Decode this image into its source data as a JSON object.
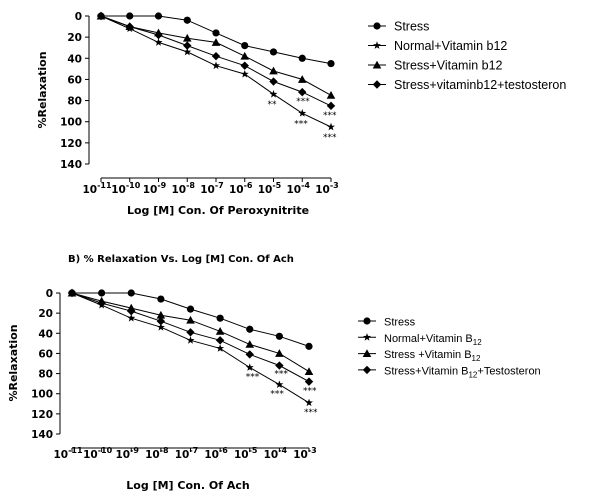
{
  "chart_data": [
    {
      "type": "line",
      "title": "",
      "xlabel": "Log [M] Con. Of Peroxynitrite",
      "ylabel": "%Relaxation",
      "x_ticks": [
        {
          "base": "10",
          "exp": "-11"
        },
        {
          "base": "10",
          "exp": "-10"
        },
        {
          "base": "10",
          "exp": "-9"
        },
        {
          "base": "10",
          "exp": "-8"
        },
        {
          "base": "10",
          "exp": "-7"
        },
        {
          "base": "10",
          "exp": "-6"
        },
        {
          "base": "10",
          "exp": "-5"
        },
        {
          "base": "10",
          "exp": "-4"
        },
        {
          "base": "10",
          "exp": "-3"
        }
      ],
      "y_ticks": [
        "0",
        "20",
        "40",
        "60",
        "80",
        "100",
        "120",
        "140"
      ],
      "ylim": [
        0,
        140
      ],
      "y_inverted": true,
      "x": [
        -11,
        -10,
        -9,
        -8,
        -7,
        -6,
        -5,
        -4,
        -3
      ],
      "series": [
        {
          "name": "Stress",
          "marker": "circle",
          "values": [
            0,
            0,
            0,
            4,
            16,
            28,
            34,
            40,
            45
          ]
        },
        {
          "name": "Normal+Vitamin b12",
          "marker": "star",
          "values": [
            0,
            12,
            25,
            34,
            47,
            55,
            74,
            92,
            105
          ]
        },
        {
          "name": "Stress+Vitamin b12",
          "marker": "triangle",
          "values": [
            0,
            10,
            16,
            21,
            25,
            38,
            52,
            60,
            75
          ]
        },
        {
          "name": "Stress+vitaminb12+testosteron",
          "marker": "diamond",
          "values": [
            0,
            10,
            18,
            28,
            38,
            47,
            62,
            72,
            85
          ]
        }
      ],
      "annotations": [
        "**",
        "***",
        "***",
        "***",
        "***"
      ]
    },
    {
      "type": "line",
      "title": "B)  % Relaxation Vs. Log [M] Con. Of Ach",
      "xlabel": "Log [M] Con. Of Ach",
      "ylabel": "%Relaxation",
      "x_ticks": [
        {
          "base": "10",
          "exp": "-11"
        },
        {
          "base": "10",
          "exp": "-10"
        },
        {
          "base": "10",
          "exp": "-9"
        },
        {
          "base": "10",
          "exp": "-8"
        },
        {
          "base": "10",
          "exp": "-7"
        },
        {
          "base": "10",
          "exp": "-6"
        },
        {
          "base": "10",
          "exp": "-5"
        },
        {
          "base": "10",
          "exp": "-4"
        },
        {
          "base": "10",
          "exp": "-3"
        }
      ],
      "y_ticks": [
        "0",
        "20",
        "40",
        "60",
        "80",
        "100",
        "120",
        "140"
      ],
      "ylim": [
        0,
        140
      ],
      "y_inverted": true,
      "x": [
        -11,
        -10,
        -9,
        -8,
        -7,
        -6,
        -5,
        -4,
        -3
      ],
      "series": [
        {
          "name": "Stress",
          "marker": "circle",
          "values": [
            0,
            0,
            0,
            6,
            16,
            25,
            36,
            43,
            53
          ]
        },
        {
          "name": "Normal+Vitamin B12",
          "marker": "star",
          "values": [
            0,
            12,
            25,
            34,
            47,
            55,
            74,
            91,
            109
          ]
        },
        {
          "name": "Stress +Vitamin B12",
          "marker": "triangle",
          "values": [
            0,
            8,
            15,
            22,
            27,
            38,
            51,
            60,
            78
          ]
        },
        {
          "name": "Stress+Vitamin B12+Testosteron",
          "marker": "diamond",
          "values": [
            0,
            10,
            18,
            28,
            39,
            47,
            61,
            72,
            88
          ]
        }
      ],
      "annotations": [
        "***",
        "***",
        "***",
        "***",
        "***"
      ]
    }
  ]
}
